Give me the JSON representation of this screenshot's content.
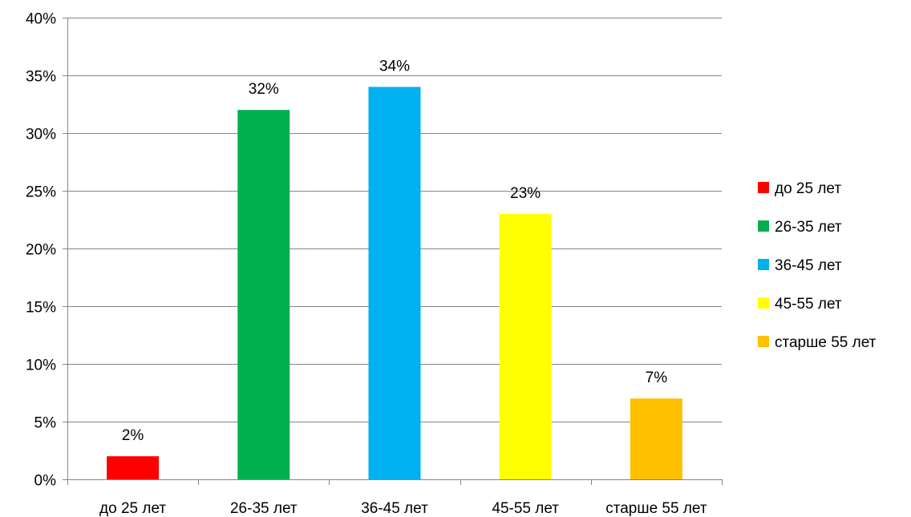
{
  "chart_data": {
    "type": "bar",
    "categories": [
      "до 25 лет",
      "26-35 лет",
      "36-45 лет",
      "45-55 лет",
      "старше 55 лет"
    ],
    "values": [
      2,
      32,
      34,
      23,
      7
    ],
    "value_labels": [
      "2%",
      "32%",
      "34%",
      "23%",
      "7%"
    ],
    "colors": [
      "#FF0000",
      "#00B050",
      "#00B0F0",
      "#FFFF00",
      "#FFC000"
    ],
    "ylim": [
      0,
      40
    ],
    "yticks": [
      0,
      5,
      10,
      15,
      20,
      25,
      30,
      35,
      40
    ],
    "ytick_labels": [
      "0%",
      "5%",
      "10%",
      "15%",
      "20%",
      "25%",
      "30%",
      "35%",
      "40%"
    ],
    "grid": true,
    "legend": {
      "position": "right",
      "entries": [
        "до 25 лет",
        "26-35 лет",
        "36-45 лет",
        "45-55 лет",
        "старше 55 лет"
      ]
    }
  }
}
